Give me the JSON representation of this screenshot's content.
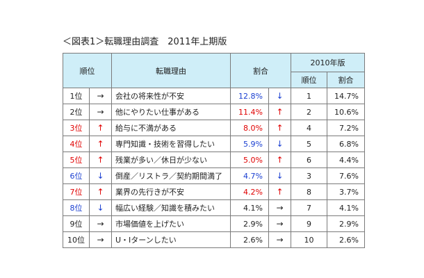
{
  "title": "＜図表1＞転職理由調査　2011年上期版",
  "header": {
    "rank": "順位",
    "reason": "転職理由",
    "share": "割合",
    "edition2010": "2010年版",
    "rank2010": "順位",
    "share2010": "割合"
  },
  "colors": {
    "red": "#e00000",
    "blue": "#1a3fd1",
    "black": "#222222",
    "header_bg": "#cfeef8"
  },
  "rows": [
    {
      "rank": "1位",
      "rank_arrow": "→",
      "reason": "会社の将来性が不安",
      "share": "12.8%",
      "share_arrow": "↓",
      "rank2010": "1",
      "share2010": "14.7%",
      "rank_color": "black",
      "share_color": "blue"
    },
    {
      "rank": "2位",
      "rank_arrow": "→",
      "reason": "他にやりたい仕事がある",
      "share": "11.4%",
      "share_arrow": "↑",
      "rank2010": "2",
      "share2010": "10.6%",
      "rank_color": "black",
      "share_color": "red"
    },
    {
      "rank": "3位",
      "rank_arrow": "↑",
      "reason": "給与に不満がある",
      "share": "8.0%",
      "share_arrow": "↑",
      "rank2010": "4",
      "share2010": "7.2%",
      "rank_color": "red",
      "share_color": "red"
    },
    {
      "rank": "4位",
      "rank_arrow": "↑",
      "reason": "専門知識・技術を習得したい",
      "share": "5.9%",
      "share_arrow": "↓",
      "rank2010": "5",
      "share2010": "6.8%",
      "rank_color": "red",
      "share_color": "blue"
    },
    {
      "rank": "5位",
      "rank_arrow": "↑",
      "reason": "残業が多い／休日が少ない",
      "share": "5.0%",
      "share_arrow": "↑",
      "rank2010": "6",
      "share2010": "4.4%",
      "rank_color": "red",
      "share_color": "red"
    },
    {
      "rank": "6位",
      "rank_arrow": "↓",
      "reason": "倒産／リストラ／契約期間満了",
      "share": "4.7%",
      "share_arrow": "↓",
      "rank2010": "3",
      "share2010": "7.6%",
      "rank_color": "blue",
      "share_color": "blue"
    },
    {
      "rank": "7位",
      "rank_arrow": "↑",
      "reason": "業界の先行きが不安",
      "share": "4.2%",
      "share_arrow": "↑",
      "rank2010": "8",
      "share2010": "3.7%",
      "rank_color": "red",
      "share_color": "red"
    },
    {
      "rank": "8位",
      "rank_arrow": "↓",
      "reason": "幅広い経験／知識を積みたい",
      "share": "4.1%",
      "share_arrow": "→",
      "rank2010": "7",
      "share2010": "4.1%",
      "rank_color": "blue",
      "share_color": "black"
    },
    {
      "rank": "9位",
      "rank_arrow": "→",
      "reason": "市場価値を上げたい",
      "share": "2.9%",
      "share_arrow": "→",
      "rank2010": "9",
      "share2010": "2.9%",
      "rank_color": "black",
      "share_color": "black"
    },
    {
      "rank": "10位",
      "rank_arrow": "→",
      "reason": "U・Iターンしたい",
      "share": "2.6%",
      "share_arrow": "→",
      "rank2010": "10",
      "share2010": "2.6%",
      "rank_color": "black",
      "share_color": "black"
    }
  ]
}
